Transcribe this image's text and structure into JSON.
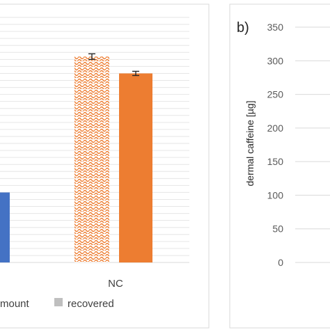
{
  "chart_data": [
    {
      "panel": "a",
      "type": "bar",
      "categories": [
        "",
        "NC"
      ],
      "series": [
        {
          "name": "amount",
          "style": "dotted",
          "color": "#4472c4",
          "values": [
            null,
            294
          ],
          "errors": [
            null,
            4
          ]
        },
        {
          "name": "recovered",
          "style": "solid",
          "values": [
            100,
            270
          ],
          "errors": [
            null,
            3
          ]
        }
      ],
      "legend": {
        "position": "bottom",
        "entries": [
          "mount",
          "recovered"
        ],
        "swatch_color": "#bfbfbf"
      },
      "colors": {
        "NC": "#ed7d31",
        "first_category": "#4472c4"
      },
      "ylim": [
        0,
        350
      ],
      "grid": true
    },
    {
      "panel": "b",
      "type": "bar",
      "panel_label": "b)",
      "ylabel": "dermal caffeine [µg]",
      "yticks": [
        "350",
        "300",
        "250",
        "200",
        "150",
        "100",
        "50",
        "0"
      ],
      "ylim": [
        0,
        350
      ],
      "grid": true,
      "series": []
    }
  ]
}
